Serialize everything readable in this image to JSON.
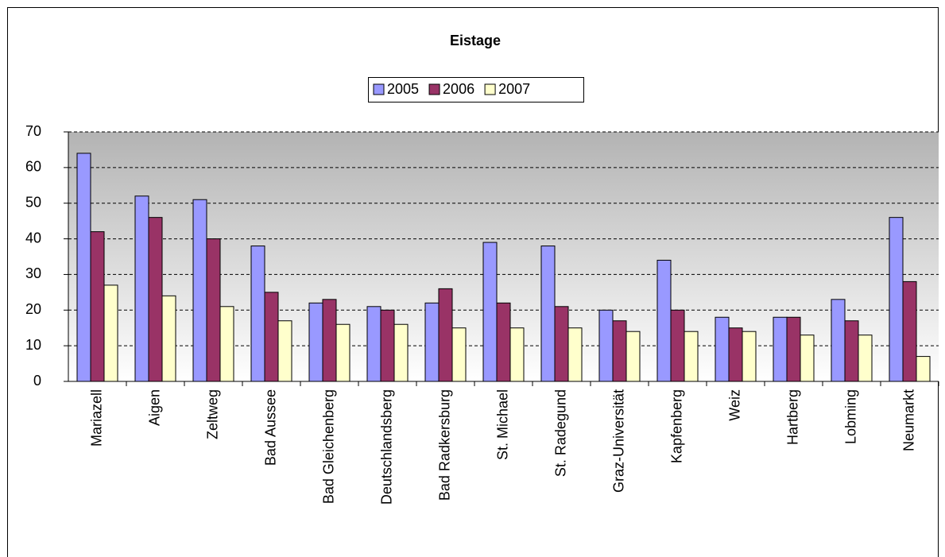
{
  "chart_data": {
    "type": "bar",
    "title": "Eistage",
    "categories": [
      "Mariazell",
      "Aigen",
      "Zeltweg",
      "Bad Aussee",
      "Bad Gleichenberg",
      "Deutschlandsberg",
      "Bad Radkersburg",
      "St. Michael",
      "St. Radegund",
      "Graz-Universität",
      "Kapfenberg",
      "Weiz",
      "Hartberg",
      "Lobming",
      "Neumarkt"
    ],
    "series": [
      {
        "name": "2005",
        "color": "#9999ff",
        "values": [
          64,
          52,
          51,
          38,
          22,
          21,
          22,
          39,
          38,
          20,
          34,
          18,
          18,
          23,
          46
        ]
      },
      {
        "name": "2006",
        "color": "#993366",
        "values": [
          42,
          46,
          40,
          25,
          23,
          20,
          26,
          22,
          21,
          17,
          20,
          15,
          18,
          17,
          28
        ]
      },
      {
        "name": "2007",
        "color": "#ffffcc",
        "values": [
          27,
          24,
          21,
          17,
          16,
          16,
          15,
          15,
          15,
          14,
          14,
          14,
          13,
          13,
          7
        ]
      }
    ],
    "ylim": [
      0,
      70
    ],
    "yticks": [
      0,
      10,
      20,
      30,
      40,
      50,
      60,
      70
    ],
    "grid": true,
    "legend": "top"
  }
}
